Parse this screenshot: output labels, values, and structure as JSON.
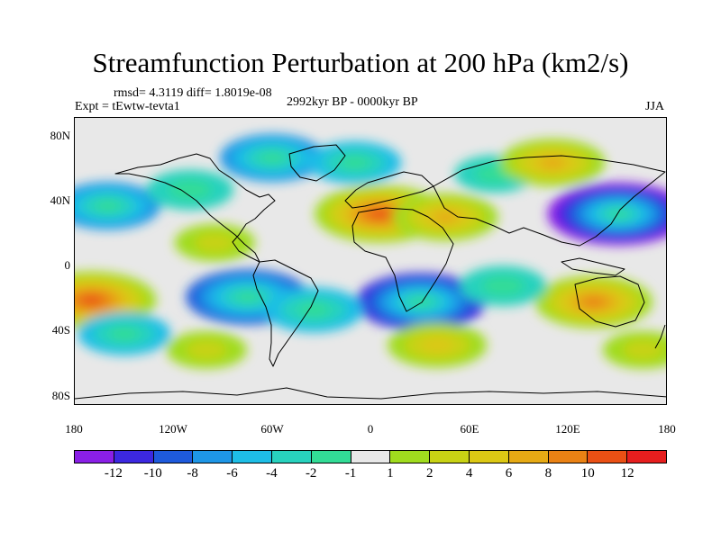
{
  "title": "Streamfunction Perturbation at 200 hPa (km2/s)",
  "stats": "rmsd= 4.3119 diff= 1.8019e-08",
  "expt": "Expt = tEwtw-tevta1",
  "period": "2992kyr BP - 0000kyr BP",
  "season": "JJA",
  "y_ticks": [
    "80N",
    "40N",
    "0",
    "40S",
    "80S"
  ],
  "x_ticks": [
    "180",
    "120W",
    "60W",
    "0",
    "60E",
    "120E",
    "180"
  ],
  "colorbar": {
    "colors": [
      "#8a1fe6",
      "#3c28e0",
      "#1e5adc",
      "#1e96e6",
      "#1ebee6",
      "#28d2be",
      "#32dc96",
      "#e8e8e8",
      "#a0dc1e",
      "#c8d214",
      "#dcc814",
      "#e6aa14",
      "#ea8214",
      "#ea5014",
      "#e61e1e"
    ],
    "labels": [
      "-12",
      "-10",
      "-8",
      "-6",
      "-4",
      "-2",
      "-1",
      "1",
      "2",
      "4",
      "6",
      "8",
      "10",
      "12"
    ]
  },
  "map_fields": [
    {
      "lon": -160,
      "lat": 35,
      "value": -6
    },
    {
      "lon": -110,
      "lat": 45,
      "value": -3
    },
    {
      "lon": -60,
      "lat": 65,
      "value": -6
    },
    {
      "lon": -10,
      "lat": 62,
      "value": -4
    },
    {
      "lon": 75,
      "lat": 55,
      "value": -2
    },
    {
      "lon": 150,
      "lat": 30,
      "value": -12
    },
    {
      "lon": 110,
      "lat": 62,
      "value": 6
    },
    {
      "lon": 5,
      "lat": 30,
      "value": 10
    },
    {
      "lon": 45,
      "lat": 28,
      "value": 6
    },
    {
      "lon": -95,
      "lat": 12,
      "value": 2
    },
    {
      "lon": -170,
      "lat": -24,
      "value": 10
    },
    {
      "lon": 135,
      "lat": -25,
      "value": 8
    },
    {
      "lon": -75,
      "lat": -22,
      "value": -9
    },
    {
      "lon": 30,
      "lat": -25,
      "value": -10
    },
    {
      "lon": -35,
      "lat": -30,
      "value": -5
    },
    {
      "lon": 80,
      "lat": -15,
      "value": -3
    },
    {
      "lon": -150,
      "lat": -45,
      "value": -4
    },
    {
      "lon": 40,
      "lat": -52,
      "value": 5
    },
    {
      "lon": -100,
      "lat": -55,
      "value": 2
    },
    {
      "lon": 165,
      "lat": -55,
      "value": 2
    }
  ]
}
